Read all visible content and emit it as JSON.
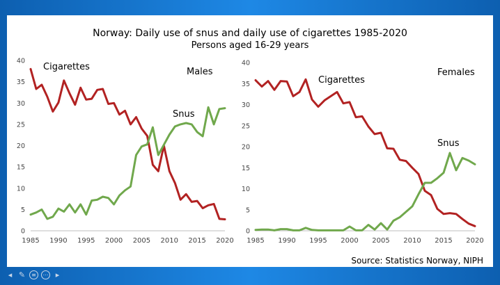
{
  "title": "Norway: Daily use of snus and daily use of cigarettes 1985-2020",
  "subtitle": "Persons aged 16-29 years",
  "source": "Source: Statistics Norway, NIPH",
  "chart_data": [
    {
      "type": "line",
      "panel_label": "Males",
      "x": [
        1985,
        1986,
        1987,
        1988,
        1989,
        1990,
        1991,
        1992,
        1993,
        1994,
        1995,
        1996,
        1997,
        1998,
        1999,
        2000,
        2001,
        2002,
        2003,
        2004,
        2005,
        2006,
        2007,
        2008,
        2009,
        2010,
        2011,
        2012,
        2013,
        2014,
        2015,
        2016,
        2017,
        2018,
        2019,
        2020
      ],
      "series": [
        {
          "name": "Cigarettes",
          "color": "#b22222",
          "values": [
            38,
            33.3,
            34.3,
            31.5,
            28,
            30.1,
            35.3,
            32.3,
            29.6,
            33.6,
            30.8,
            31,
            33.1,
            33.3,
            29.8,
            30,
            27.3,
            28.2,
            25,
            26.7,
            24,
            22.3,
            15.5,
            14,
            20,
            14,
            11.2,
            7.3,
            8.6,
            6.8,
            7,
            5.3,
            6,
            6.3,
            2.8,
            2.7
          ]
        },
        {
          "name": "Snus",
          "color": "#70a84c",
          "values": [
            3.8,
            4.3,
            5,
            2.8,
            3.3,
            5.2,
            4.5,
            6.2,
            4.3,
            6.2,
            3.8,
            7.1,
            7.3,
            8,
            7.7,
            6.2,
            8.3,
            9.5,
            10.4,
            17.8,
            19.8,
            20.3,
            24.3,
            17.8,
            20.2,
            22.6,
            24.5,
            25,
            25.3,
            25,
            23.2,
            22.2,
            29,
            25,
            28.6,
            28.8
          ]
        }
      ],
      "xlim": [
        1985,
        2020
      ],
      "ylim": [
        0,
        40
      ],
      "xticks": [
        "1985",
        "1990",
        "1995",
        "2000",
        "2005",
        "2010",
        "2015",
        "2020"
      ],
      "yticks": [
        "0",
        "5",
        "10",
        "15",
        "20",
        "25",
        "30",
        "35",
        "40"
      ]
    },
    {
      "type": "line",
      "panel_label": "Females",
      "x": [
        1985,
        1986,
        1987,
        1988,
        1989,
        1990,
        1991,
        1992,
        1993,
        1994,
        1995,
        1996,
        1997,
        1998,
        1999,
        2000,
        2001,
        2002,
        2003,
        2004,
        2005,
        2006,
        2007,
        2008,
        2009,
        2010,
        2011,
        2012,
        2013,
        2014,
        2015,
        2016,
        2017,
        2018,
        2019,
        2020
      ],
      "series": [
        {
          "name": "Cigarettes",
          "color": "#b22222",
          "values": [
            35.8,
            34.3,
            35.6,
            33.5,
            35.6,
            35.5,
            32,
            33,
            36,
            31.2,
            29.5,
            31,
            32,
            33,
            30.3,
            30.6,
            27,
            27.2,
            24.8,
            23,
            23.3,
            19.6,
            19.5,
            16.9,
            16.6,
            15,
            13.5,
            9.5,
            8.5,
            5.2,
            4,
            4.2,
            4,
            2.8,
            1.7,
            1.1
          ]
        },
        {
          "name": "Snus",
          "color": "#70a84c",
          "values": [
            0.2,
            0.3,
            0.3,
            0.1,
            0.4,
            0.4,
            0.1,
            0.1,
            0.7,
            0.2,
            0.1,
            0.1,
            0.1,
            0.1,
            0.1,
            1,
            0.1,
            0.1,
            1.4,
            0.3,
            1.8,
            0.3,
            2.4,
            3.2,
            4.5,
            5.8,
            8.7,
            11.4,
            11.4,
            12.5,
            13.8,
            18.5,
            14.4,
            17.3,
            16.7,
            15.8
          ]
        }
      ],
      "xlim": [
        1985,
        2020
      ],
      "ylim": [
        0,
        40
      ],
      "xticks": [
        "1985",
        "1990",
        "1995",
        "2000",
        "2005",
        "2010",
        "2015",
        "2020"
      ],
      "yticks": [
        "0",
        "5",
        "10",
        "15",
        "20",
        "25",
        "30",
        "35",
        "40"
      ]
    }
  ],
  "nav_icons": [
    "arrow-left-icon",
    "pencil-icon",
    "menu-circle-icon",
    "more-circle-icon",
    "arrow-right-icon"
  ]
}
